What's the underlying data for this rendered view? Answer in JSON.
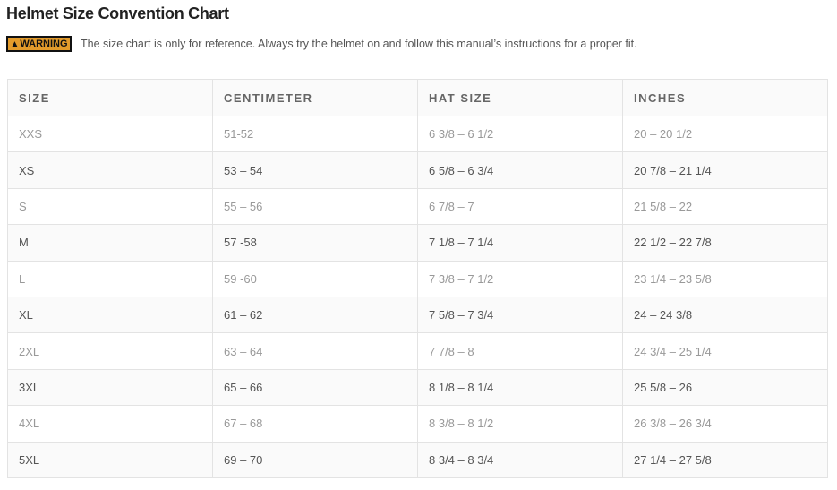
{
  "title": "Helmet Size Convention Chart",
  "warning": {
    "badge_label": "WARNING",
    "icon": "warning-triangle-icon",
    "badge_color": "#e39b2b",
    "text": "The size chart is only for reference. Always try the helmet on and follow this manual’s instructions for a proper fit."
  },
  "table": {
    "headers": [
      "SIZE",
      "CENTIMETER",
      "HAT SIZE",
      "INCHES"
    ],
    "rows": [
      [
        "XXS",
        "51-52",
        "6 3/8 – 6 1/2",
        "20 – 20 1/2"
      ],
      [
        "XS",
        "53 – 54",
        "6 5/8 – 6 3/4",
        "20 7/8 – 21 1/4"
      ],
      [
        "S",
        "55 – 56",
        "6 7/8 – 7",
        "21 5/8 – 22"
      ],
      [
        "M",
        "57 -58",
        "7 1/8 – 7 1/4",
        "22 1/2 – 22 7/8"
      ],
      [
        "L",
        "59 -60",
        "7 3/8 – 7 1/2",
        "23 1/4 – 23 5/8"
      ],
      [
        "XL",
        "61 – 62",
        "7 5/8 – 7 3/4",
        "24 – 24 3/8"
      ],
      [
        "2XL",
        "63 – 64",
        "7 7/8 – 8",
        "24 3/4 – 25 1/4"
      ],
      [
        "3XL",
        "65 – 66",
        "8 1/8 – 8 1/4",
        "25 5/8 – 26"
      ],
      [
        "4XL",
        "67 – 68",
        "8 3/8 – 8 1/2",
        "26 3/8 – 26 3/4"
      ],
      [
        "5XL",
        "69 – 70",
        "8 3/4 – 8 3/4",
        "27 1/4 – 27 5/8"
      ]
    ]
  }
}
